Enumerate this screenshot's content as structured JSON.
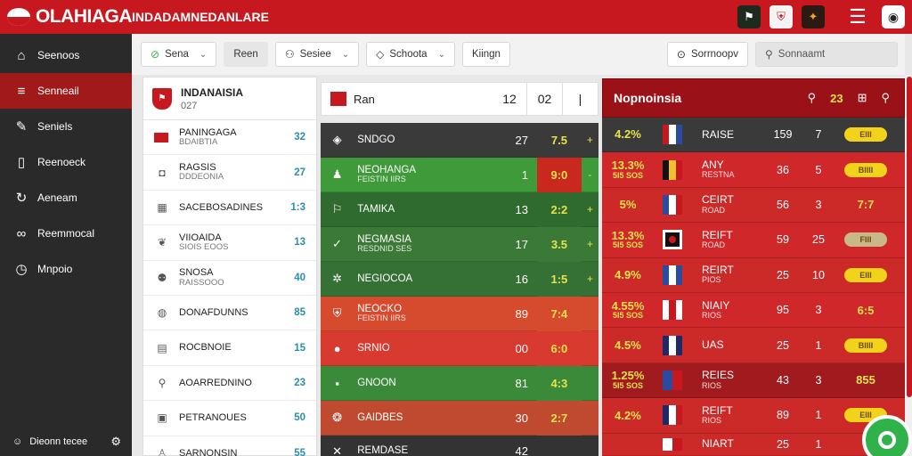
{
  "app": {
    "title": "OLAHIAGA",
    "subtitle": "INDADAMNEDANLARE"
  },
  "colors": {
    "primary_red": "#c8181f",
    "dark_red": "#9a1218",
    "sidebar": "#2a2a2a",
    "green": "#2fb24a",
    "accent_yellow": "#e8e34a"
  },
  "top_icons": [
    "crest-icon",
    "shield-icon",
    "mascot-icon",
    "hamburger-menu-icon",
    "profile-icon"
  ],
  "sidebar": {
    "items": [
      {
        "label": "Seenoos",
        "icon": "home-icon"
      },
      {
        "label": "Senneail",
        "icon": "list-icon"
      },
      {
        "label": "Seniels",
        "icon": "edit-icon"
      },
      {
        "label": "Reenoeck",
        "icon": "device-icon"
      },
      {
        "label": "Aeneam",
        "icon": "refresh-icon"
      },
      {
        "label": "Reemmocal",
        "icon": "link-icon"
      },
      {
        "label": "Mnpoio",
        "icon": "clock-icon"
      }
    ],
    "footer": "Dieonn tecee"
  },
  "filterbar": {
    "chips": [
      "Sena",
      "Reen",
      "Sesiee",
      "Schoota",
      "Kiingn"
    ],
    "right_button": "Sorrnoopv",
    "search_placeholder": "Sonnaamt"
  },
  "leftlist": {
    "title": "INDANAISIA",
    "subtitle": "027",
    "rows": [
      {
        "name": "PANINGAGA",
        "sub": "BDAIBTIA",
        "value": "32"
      },
      {
        "name": "RAGSIS",
        "sub": "DDDEONIA",
        "value": "27"
      },
      {
        "name": "SACEBOSADINES",
        "sub": "",
        "value": "1:3"
      },
      {
        "name": "VIIOAIDA",
        "sub": "SIOIS EOOS",
        "value": "13"
      },
      {
        "name": "SNOSA",
        "sub": "RAISSOOO",
        "value": "40"
      },
      {
        "name": "DONAFDUNNS",
        "sub": "",
        "value": "85"
      },
      {
        "name": "ROCBNOIE",
        "sub": "",
        "value": "15"
      },
      {
        "name": "AOARREDNINO",
        "sub": "",
        "value": "23"
      },
      {
        "name": "PETRANOUES",
        "sub": "",
        "value": "50"
      },
      {
        "name": "SARNONSIN",
        "sub": "",
        "value": "55"
      }
    ]
  },
  "center": {
    "header": {
      "name": "Ran",
      "score": "12",
      "col1": "02",
      "col2": "|"
    },
    "rows": [
      {
        "name": "SNDGO",
        "sub": "",
        "v1": "27",
        "v2": "7.5",
        "v3": "+"
      },
      {
        "name": "NEOHANGA",
        "sub": "FEISTIN IIRS",
        "v1": "1",
        "v2": "9:0",
        "v3": "-"
      },
      {
        "name": "TAMIKA",
        "sub": "",
        "v1": "13",
        "v2": "2:2",
        "v3": "+"
      },
      {
        "name": "NEGMASIA",
        "sub": "RESDNID SES",
        "v1": "17",
        "v2": "3.5",
        "v3": "+"
      },
      {
        "name": "NEGIOCOA",
        "sub": "",
        "v1": "16",
        "v2": "1:5",
        "v3": "+"
      },
      {
        "name": "NEOCKO",
        "sub": "FEISTIN IIRS",
        "v1": "89",
        "v2": "7:4",
        "v3": ""
      },
      {
        "name": "SRNIO",
        "sub": "",
        "v1": "00",
        "v2": "6:0",
        "v3": ""
      },
      {
        "name": "GNOON",
        "sub": "",
        "v1": "81",
        "v2": "4:3",
        "v3": ""
      },
      {
        "name": "GAIDBES",
        "sub": "",
        "v1": "30",
        "v2": "2:7",
        "v3": ""
      },
      {
        "name": "REMDASE",
        "sub": "",
        "v1": "42",
        "v2": "",
        "v3": ""
      }
    ]
  },
  "rightpanel": {
    "title": "Nopnoinsia",
    "header_value": "23",
    "rows": [
      {
        "pct": "4.2%",
        "pct_sub": "",
        "name": "RAISE",
        "sub": "",
        "n1": "159",
        "n2": "7",
        "pill": "EIII",
        "pill_style": "pill"
      },
      {
        "pct": "13.3%",
        "pct_sub": "5I5 SOS",
        "name": "ANY",
        "sub": "RESTNA",
        "n1": "36",
        "n2": "5",
        "pill": "BIIII",
        "pill_style": "pill"
      },
      {
        "pct": "5%",
        "pct_sub": "",
        "name": "CEIRT",
        "sub": "ROAD",
        "n1": "56",
        "n2": "3",
        "pill": "7:7",
        "pill_style": "txt"
      },
      {
        "pct": "13.3%",
        "pct_sub": "5I5 SOS",
        "name": "REIFT",
        "sub": "ROAD",
        "n1": "59",
        "n2": "25",
        "pill": "FIII",
        "pill_style": "pill"
      },
      {
        "pct": "4.9%",
        "pct_sub": "",
        "name": "REIRT",
        "sub": "PIOS",
        "n1": "25",
        "n2": "10",
        "pill": "EIII",
        "pill_style": "pill"
      },
      {
        "pct": "4.55%",
        "pct_sub": "5I5 SOS",
        "name": "NIAIY",
        "sub": "RIOS",
        "n1": "95",
        "n2": "3",
        "pill": "6:5",
        "pill_style": "txt"
      },
      {
        "pct": "4.5%",
        "pct_sub": "",
        "name": "UAS",
        "sub": "",
        "n1": "25",
        "n2": "1",
        "pill": "BIIII",
        "pill_style": "pill"
      },
      {
        "pct": "1.25%",
        "pct_sub": "5I5 SOS",
        "name": "REIES",
        "sub": "RIOS",
        "n1": "43",
        "n2": "3",
        "pill": "855",
        "pill_style": "txt"
      },
      {
        "pct": "4.2%",
        "pct_sub": "",
        "name": "REIFT",
        "sub": "RIOS",
        "n1": "89",
        "n2": "1",
        "pill": "EIII",
        "pill_style": "pill"
      },
      {
        "pct": "",
        "pct_sub": "",
        "name": "NIART",
        "sub": "",
        "n1": "25",
        "n2": "1",
        "pill": "",
        "pill_style": "pill"
      }
    ]
  }
}
